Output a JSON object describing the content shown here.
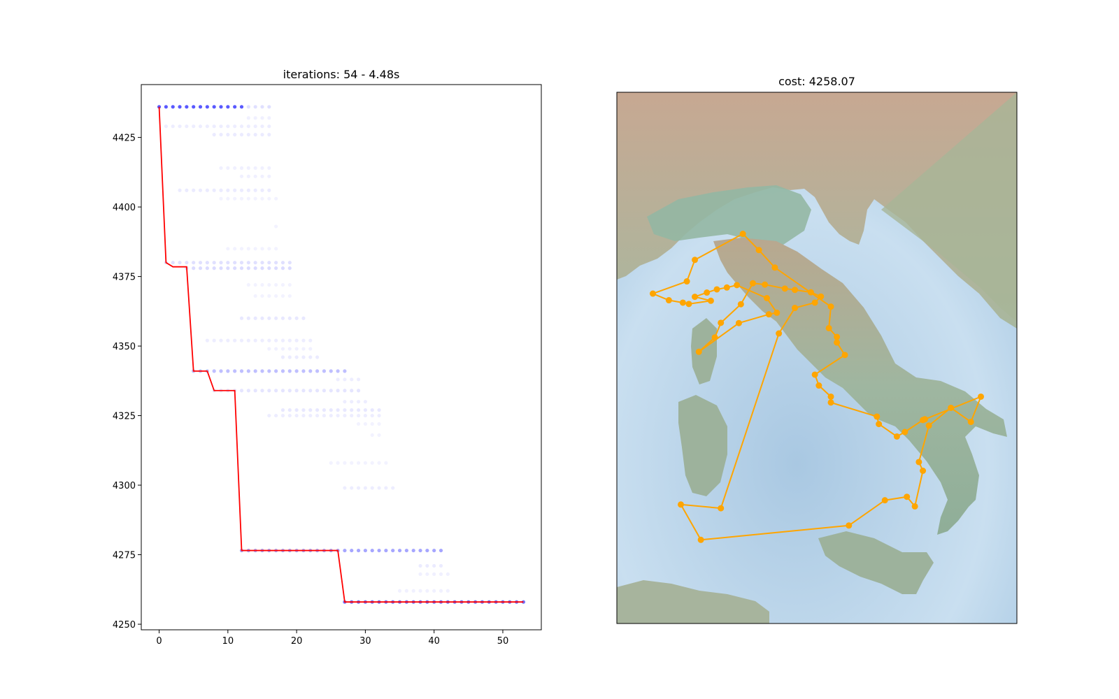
{
  "chart_data": [
    {
      "type": "scatter",
      "title": "iterations: 54 - 4.48s",
      "xlabel": "",
      "ylabel": "",
      "xlim": [
        -2.6,
        55.6
      ],
      "ylim": [
        4248,
        4444
      ],
      "xticks": [
        0,
        10,
        20,
        30,
        40,
        50
      ],
      "yticks": [
        4250,
        4275,
        4300,
        4325,
        4350,
        4375,
        4400,
        4425
      ],
      "grid": false,
      "best_series": {
        "color": "#ff0000",
        "x": [
          0,
          1,
          2,
          4,
          5,
          7,
          8,
          11,
          12,
          26,
          27,
          53
        ],
        "y": [
          4436,
          4380,
          4378.5,
          4378.5,
          4341,
          4341,
          4334,
          4334,
          4276.5,
          4276.5,
          4258,
          4258
        ]
      },
      "population_color": "#0000ff",
      "population_bands": [
        {
          "y": 4436,
          "x0": 0,
          "x1": 12,
          "alpha": 0.65
        },
        {
          "y": 4436,
          "x0": 13,
          "x1": 16,
          "alpha": 0.12
        },
        {
          "y": 4432,
          "x0": 13,
          "x1": 16,
          "alpha": 0.06
        },
        {
          "y": 4429,
          "x0": 1,
          "x1": 16,
          "alpha": 0.07
        },
        {
          "y": 4426,
          "x0": 8,
          "x1": 16,
          "alpha": 0.08
        },
        {
          "y": 4414,
          "x0": 9,
          "x1": 16,
          "alpha": 0.06
        },
        {
          "y": 4411,
          "x0": 12,
          "x1": 16,
          "alpha": 0.06
        },
        {
          "y": 4406,
          "x0": 3,
          "x1": 16,
          "alpha": 0.08
        },
        {
          "y": 4403,
          "x0": 9,
          "x1": 17,
          "alpha": 0.05
        },
        {
          "y": 4393,
          "x0": 17,
          "x1": 17,
          "alpha": 0.05
        },
        {
          "y": 4385,
          "x0": 10,
          "x1": 17,
          "alpha": 0.05
        },
        {
          "y": 4380,
          "x0": 1,
          "x1": 19,
          "alpha": 0.12
        },
        {
          "y": 4378,
          "x0": 4,
          "x1": 19,
          "alpha": 0.14
        },
        {
          "y": 4372,
          "x0": 13,
          "x1": 19,
          "alpha": 0.05
        },
        {
          "y": 4368,
          "x0": 14,
          "x1": 19,
          "alpha": 0.05
        },
        {
          "y": 4360,
          "x0": 12,
          "x1": 21,
          "alpha": 0.09
        },
        {
          "y": 4352,
          "x0": 7,
          "x1": 22,
          "alpha": 0.07
        },
        {
          "y": 4349,
          "x0": 16,
          "x1": 22,
          "alpha": 0.06
        },
        {
          "y": 4346,
          "x0": 18,
          "x1": 23,
          "alpha": 0.08
        },
        {
          "y": 4341,
          "x0": 5,
          "x1": 27,
          "alpha": 0.25
        },
        {
          "y": 4338,
          "x0": 26,
          "x1": 29,
          "alpha": 0.07
        },
        {
          "y": 4334,
          "x0": 8,
          "x1": 29,
          "alpha": 0.1
        },
        {
          "y": 4330,
          "x0": 27,
          "x1": 30,
          "alpha": 0.07
        },
        {
          "y": 4327,
          "x0": 18,
          "x1": 32,
          "alpha": 0.09
        },
        {
          "y": 4325,
          "x0": 16,
          "x1": 32,
          "alpha": 0.07
        },
        {
          "y": 4322,
          "x0": 29,
          "x1": 32,
          "alpha": 0.05
        },
        {
          "y": 4318,
          "x0": 31,
          "x1": 32,
          "alpha": 0.05
        },
        {
          "y": 4308,
          "x0": 25,
          "x1": 33,
          "alpha": 0.05
        },
        {
          "y": 4299,
          "x0": 27,
          "x1": 34,
          "alpha": 0.07
        },
        {
          "y": 4276.5,
          "x0": 12,
          "x1": 41,
          "alpha": 0.35
        },
        {
          "y": 4271,
          "x0": 38,
          "x1": 41,
          "alpha": 0.08
        },
        {
          "y": 4268,
          "x0": 38,
          "x1": 42,
          "alpha": 0.06
        },
        {
          "y": 4262,
          "x0": 35,
          "x1": 42,
          "alpha": 0.06
        },
        {
          "y": 4258,
          "x0": 27,
          "x1": 53,
          "alpha": 0.55
        }
      ]
    },
    {
      "type": "map_route",
      "title": "cost: 4258.07",
      "xlim": [
        0,
        100
      ],
      "ylim": [
        0,
        100
      ],
      "background": "relief map of Italy",
      "line_color": "#ffa500",
      "marker_color": "#ffa500",
      "route": [
        [
          40.5,
          90.8
        ],
        [
          44.5,
          81.2
        ],
        [
          49.5,
          79.2
        ],
        [
          51.0,
          76.9
        ],
        [
          48.5,
          75.3
        ],
        [
          44.5,
          74.4
        ],
        [
          42.0,
          73.9
        ],
        [
          37.0,
          72.4
        ],
        [
          34.0,
          71.9
        ],
        [
          31.0,
          79.8
        ],
        [
          26.0,
          86.8
        ],
        [
          24.5,
          92.3
        ],
        [
          20.5,
          97.7
        ],
        [
          30.5,
          86.9
        ],
        [
          38.0,
          83.6
        ],
        [
          40.0,
          83.0
        ],
        [
          37.5,
          77.5
        ],
        [
          30.0,
          72.6
        ],
        [
          27.5,
          73.5
        ],
        [
          25.0,
          74.2
        ],
        [
          22.5,
          75.4
        ],
        [
          19.5,
          77.0
        ],
        [
          23.5,
          78.5
        ],
        [
          18.0,
          79.7
        ],
        [
          16.5,
          79.2
        ],
        [
          13.0,
          78.3
        ],
        [
          9.0,
          75.8
        ],
        [
          17.5,
          71.2
        ],
        [
          19.5,
          63.1
        ],
        [
          31.5,
          53.3
        ],
        [
          35.5,
          59.4
        ],
        [
          39.5,
          66.0
        ],
        [
          53.5,
          80.7
        ],
        [
          53.0,
          88.8
        ],
        [
          55.0,
          92.1
        ],
        [
          55.0,
          94.2
        ],
        [
          57.0,
          98.9
        ],
        [
          49.5,
          106.3
        ],
        [
          50.5,
          110.4
        ],
        [
          53.5,
          114.6
        ],
        [
          53.5,
          116.8
        ],
        [
          65.0,
          122.1
        ],
        [
          65.5,
          124.9
        ],
        [
          70.0,
          129.6
        ],
        [
          72.0,
          127.9
        ],
        [
          76.5,
          123.4
        ],
        [
          77.0,
          123.1
        ],
        [
          91.0,
          114.6
        ],
        [
          88.5,
          124.1
        ],
        [
          83.5,
          118.8
        ],
        [
          78.0,
          125.5
        ],
        [
          75.5,
          139.2
        ],
        [
          76.5,
          142.5
        ],
        [
          74.5,
          155.9
        ],
        [
          72.5,
          152.3
        ],
        [
          67.0,
          153.6
        ],
        [
          58.0,
          163.1
        ],
        [
          21.0,
          168.5
        ],
        [
          16.0,
          155.2
        ],
        [
          26.0,
          156.6
        ]
      ]
    }
  ]
}
